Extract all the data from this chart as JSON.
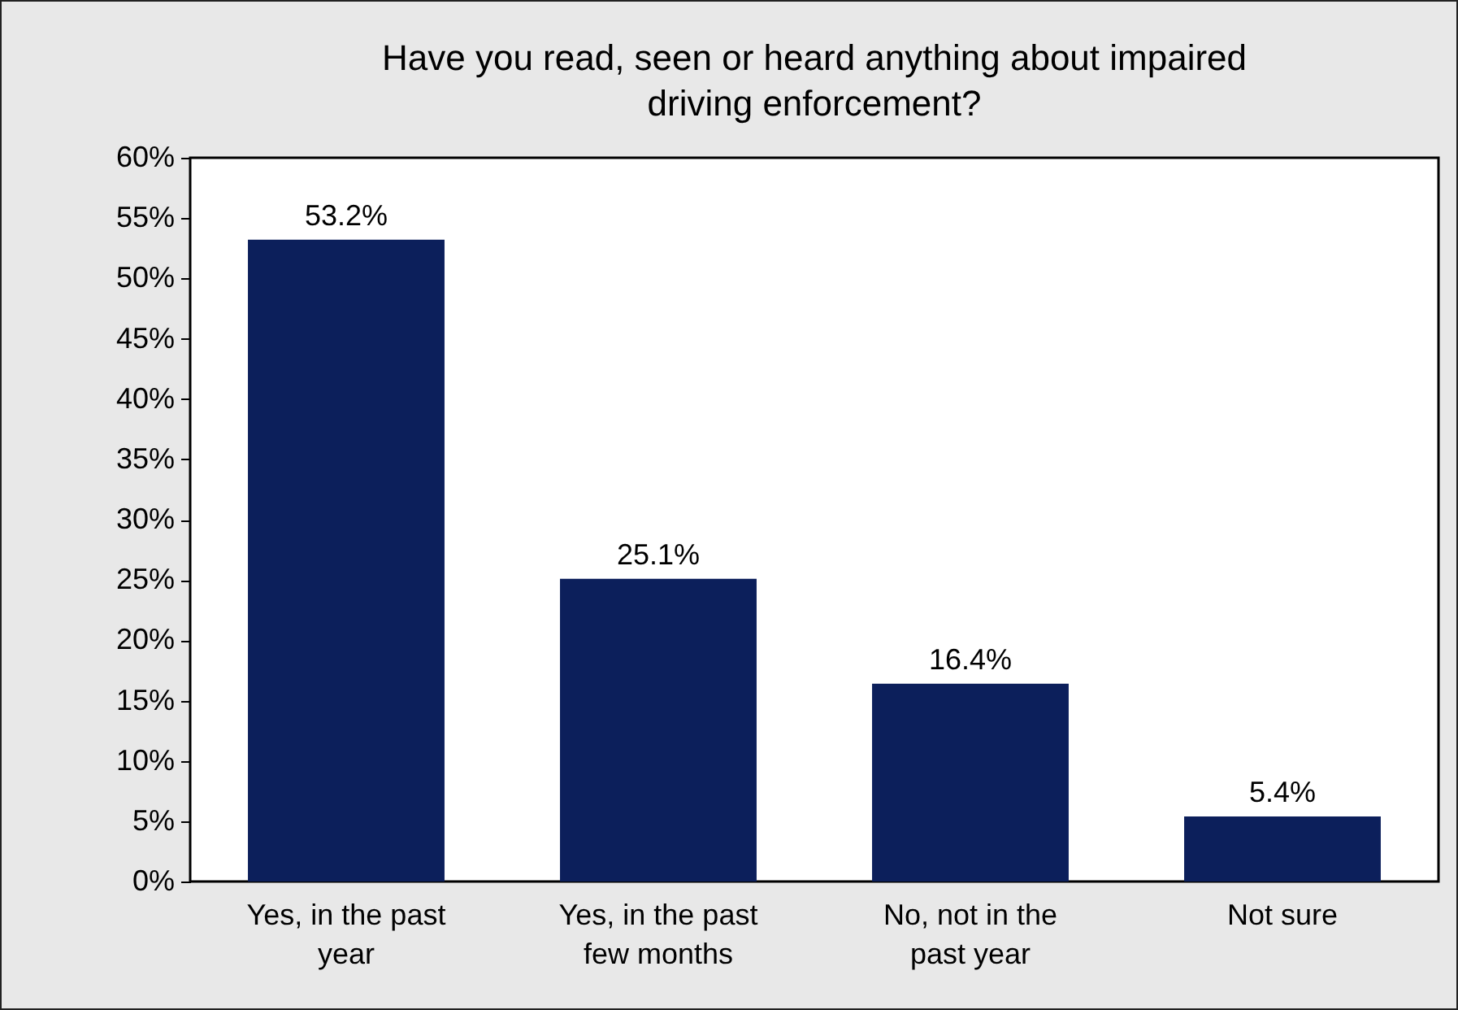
{
  "chart_data": {
    "type": "bar",
    "title": "Have you read, seen or heard anything about impaired driving enforcement?",
    "categories": [
      "Yes, in the past year",
      "Yes, in the past few months",
      "No, not in the past year",
      "Not sure"
    ],
    "values": [
      53.2,
      25.1,
      16.4,
      5.4
    ],
    "value_labels": [
      "53.2%",
      "25.1%",
      "16.4%",
      "5.4%"
    ],
    "color": "#0c1f5b",
    "ylim": [
      0,
      60
    ],
    "yticks": [
      {
        "value": 0,
        "label": "0%"
      },
      {
        "value": 5,
        "label": "5%"
      },
      {
        "value": 10,
        "label": "10%"
      },
      {
        "value": 15,
        "label": "15%"
      },
      {
        "value": 20,
        "label": "20%"
      },
      {
        "value": 25,
        "label": "25%"
      },
      {
        "value": 30,
        "label": "30%"
      },
      {
        "value": 35,
        "label": "35%"
      },
      {
        "value": 40,
        "label": "40%"
      },
      {
        "value": 45,
        "label": "45%"
      },
      {
        "value": 50,
        "label": "50%"
      },
      {
        "value": 55,
        "label": "55%"
      },
      {
        "value": 60,
        "label": "60%"
      }
    ]
  }
}
